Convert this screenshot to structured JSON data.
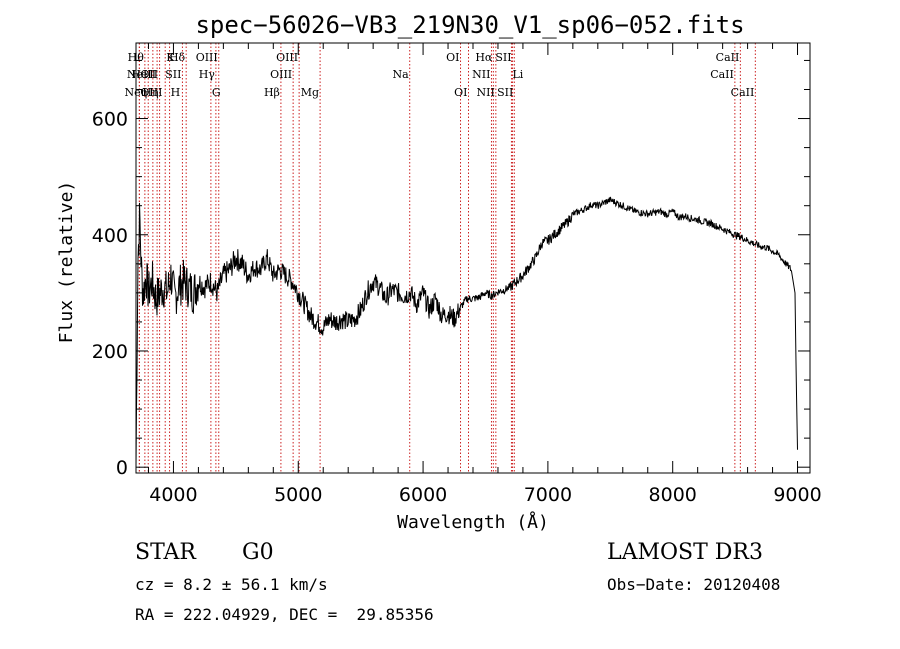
{
  "chart_data": {
    "type": "line",
    "title": "spec−56026−VB3_219N30_V1_sp06−052.fits",
    "xlabel": "Wavelength (Å)",
    "ylabel": "Flux (relative)",
    "xlim": [
      3700,
      9100
    ],
    "ylim": [
      -10,
      730
    ],
    "xticks": [
      4000,
      5000,
      6000,
      7000,
      8000,
      9000
    ],
    "yticks": [
      0,
      200,
      400,
      600
    ],
    "x_minor_step": 200,
    "y_minor_step": 50,
    "series": [
      {
        "name": "spectrum",
        "x": [
          3700,
          3715,
          3730,
          3745,
          3760,
          3780,
          3800,
          3830,
          3860,
          3890,
          3920,
          3950,
          3980,
          4010,
          4040,
          4080,
          4120,
          4160,
          4200,
          4250,
          4300,
          4350,
          4400,
          4450,
          4500,
          4550,
          4600,
          4650,
          4700,
          4750,
          4800,
          4850,
          4900,
          4950,
          5000,
          5050,
          5100,
          5150,
          5200,
          5250,
          5300,
          5350,
          5400,
          5450,
          5500,
          5550,
          5600,
          5650,
          5700,
          5750,
          5800,
          5850,
          5900,
          5950,
          6000,
          6050,
          6100,
          6150,
          6200,
          6250,
          6300,
          6350,
          6400,
          6450,
          6500,
          6550,
          6600,
          6650,
          6700,
          6750,
          6800,
          6850,
          6900,
          6950,
          7000,
          7050,
          7100,
          7150,
          7200,
          7250,
          7300,
          7350,
          7400,
          7450,
          7500,
          7550,
          7600,
          7650,
          7700,
          7750,
          7800,
          7850,
          7900,
          7950,
          8000,
          8050,
          8100,
          8150,
          8200,
          8250,
          8300,
          8350,
          8400,
          8450,
          8500,
          8550,
          8600,
          8650,
          8700,
          8750,
          8800,
          8850,
          8900,
          8950,
          8980,
          8990,
          9000
        ],
        "y": [
          0,
          360,
          430,
          330,
          300,
          330,
          300,
          320,
          290,
          300,
          310,
          300,
          330,
          290,
          310,
          320,
          310,
          300,
          320,
          310,
          320,
          300,
          330,
          340,
          360,
          350,
          330,
          345,
          340,
          360,
          330,
          340,
          330,
          320,
          300,
          280,
          260,
          250,
          240,
          255,
          250,
          255,
          250,
          255,
          270,
          300,
          320,
          310,
          290,
          305,
          300,
          295,
          300,
          280,
          300,
          270,
          290,
          260,
          265,
          255,
          275,
          290,
          290,
          292,
          300,
          295,
          302,
          305,
          310,
          320,
          330,
          345,
          360,
          385,
          390,
          400,
          410,
          420,
          435,
          440,
          445,
          452,
          450,
          455,
          460,
          455,
          450,
          445,
          440,
          438,
          436,
          438,
          440,
          435,
          440,
          430,
          432,
          428,
          426,
          422,
          420,
          415,
          410,
          405,
          400,
          396,
          390,
          385,
          380,
          378,
          372,
          365,
          352,
          340,
          300,
          150,
          30
        ]
      }
    ],
    "lines": [
      {
        "wl": 3727,
        "label": "OII",
        "row": 1,
        "side": "right"
      },
      {
        "wl": 3727,
        "label": "OIII",
        "row": 2,
        "side": "right"
      },
      {
        "wl": 3771,
        "label": "Hθ",
        "row": 0,
        "side": "left"
      },
      {
        "wl": 3798,
        "label": "Neη",
        "row": 2,
        "side": "left"
      },
      {
        "wl": 3835,
        "label": "HeI",
        "row": 1,
        "side": "left"
      },
      {
        "wl": 3869,
        "label": "NeIII",
        "row": 1,
        "side": "left"
      },
      {
        "wl": 3889,
        "label": "Hη",
        "row": 2,
        "side": "left"
      },
      {
        "wl": 3934,
        "label": "K",
        "row": 0,
        "side": "right"
      },
      {
        "wl": 3969,
        "label": "H",
        "row": 2,
        "side": "right"
      },
      {
        "wl": 4072,
        "label": "SII",
        "row": 1,
        "side": "left"
      },
      {
        "wl": 4102,
        "label": "Hδ",
        "row": 0,
        "side": "left"
      },
      {
        "wl": 4300,
        "label": "G",
        "row": 2,
        "side": "right"
      },
      {
        "wl": 4340,
        "label": "Hγ",
        "row": 1,
        "side": "left"
      },
      {
        "wl": 4363,
        "label": "OIII",
        "row": 0,
        "side": "left"
      },
      {
        "wl": 4861,
        "label": "Hβ",
        "row": 2,
        "side": "left"
      },
      {
        "wl": 4959,
        "label": "OIII",
        "row": 1,
        "side": "left"
      },
      {
        "wl": 5007,
        "label": "OIII",
        "row": 0,
        "side": "left"
      },
      {
        "wl": 5175,
        "label": "Mg",
        "row": 2,
        "side": "left"
      },
      {
        "wl": 5893,
        "label": "Na",
        "row": 1,
        "side": "left"
      },
      {
        "wl": 6300,
        "label": "OI",
        "row": 0,
        "side": "left"
      },
      {
        "wl": 6364,
        "label": "OI",
        "row": 2,
        "side": "left"
      },
      {
        "wl": 6548,
        "label": "NII",
        "row": 1,
        "side": "left"
      },
      {
        "wl": 6563,
        "label": "Hα",
        "row": 0,
        "side": "left"
      },
      {
        "wl": 6583,
        "label": "NII",
        "row": 2,
        "side": "left"
      },
      {
        "wl": 6708,
        "label": "Li",
        "row": 1,
        "side": "right"
      },
      {
        "wl": 6717,
        "label": "SII",
        "row": 0,
        "side": "left"
      },
      {
        "wl": 6731,
        "label": "SII",
        "row": 2,
        "side": "left"
      },
      {
        "wl": 8498,
        "label": "CaII",
        "row": 1,
        "side": "left"
      },
      {
        "wl": 8542,
        "label": "CaII",
        "row": 0,
        "side": "left"
      },
      {
        "wl": 8662,
        "label": "CaII",
        "row": 2,
        "side": "left"
      }
    ]
  },
  "info": {
    "object_class": "STAR",
    "subclass": "G0",
    "survey": "LAMOST DR3",
    "cz": "cz = 8.2 ± 56.1 km/s",
    "obs_date": "Obs−Date: 20120408",
    "coords": "RA = 222.04929, DEC =  29.85356"
  },
  "colors": {
    "spectrum": "#000000",
    "line_markers": "#cc2222",
    "axes": "#000000"
  }
}
